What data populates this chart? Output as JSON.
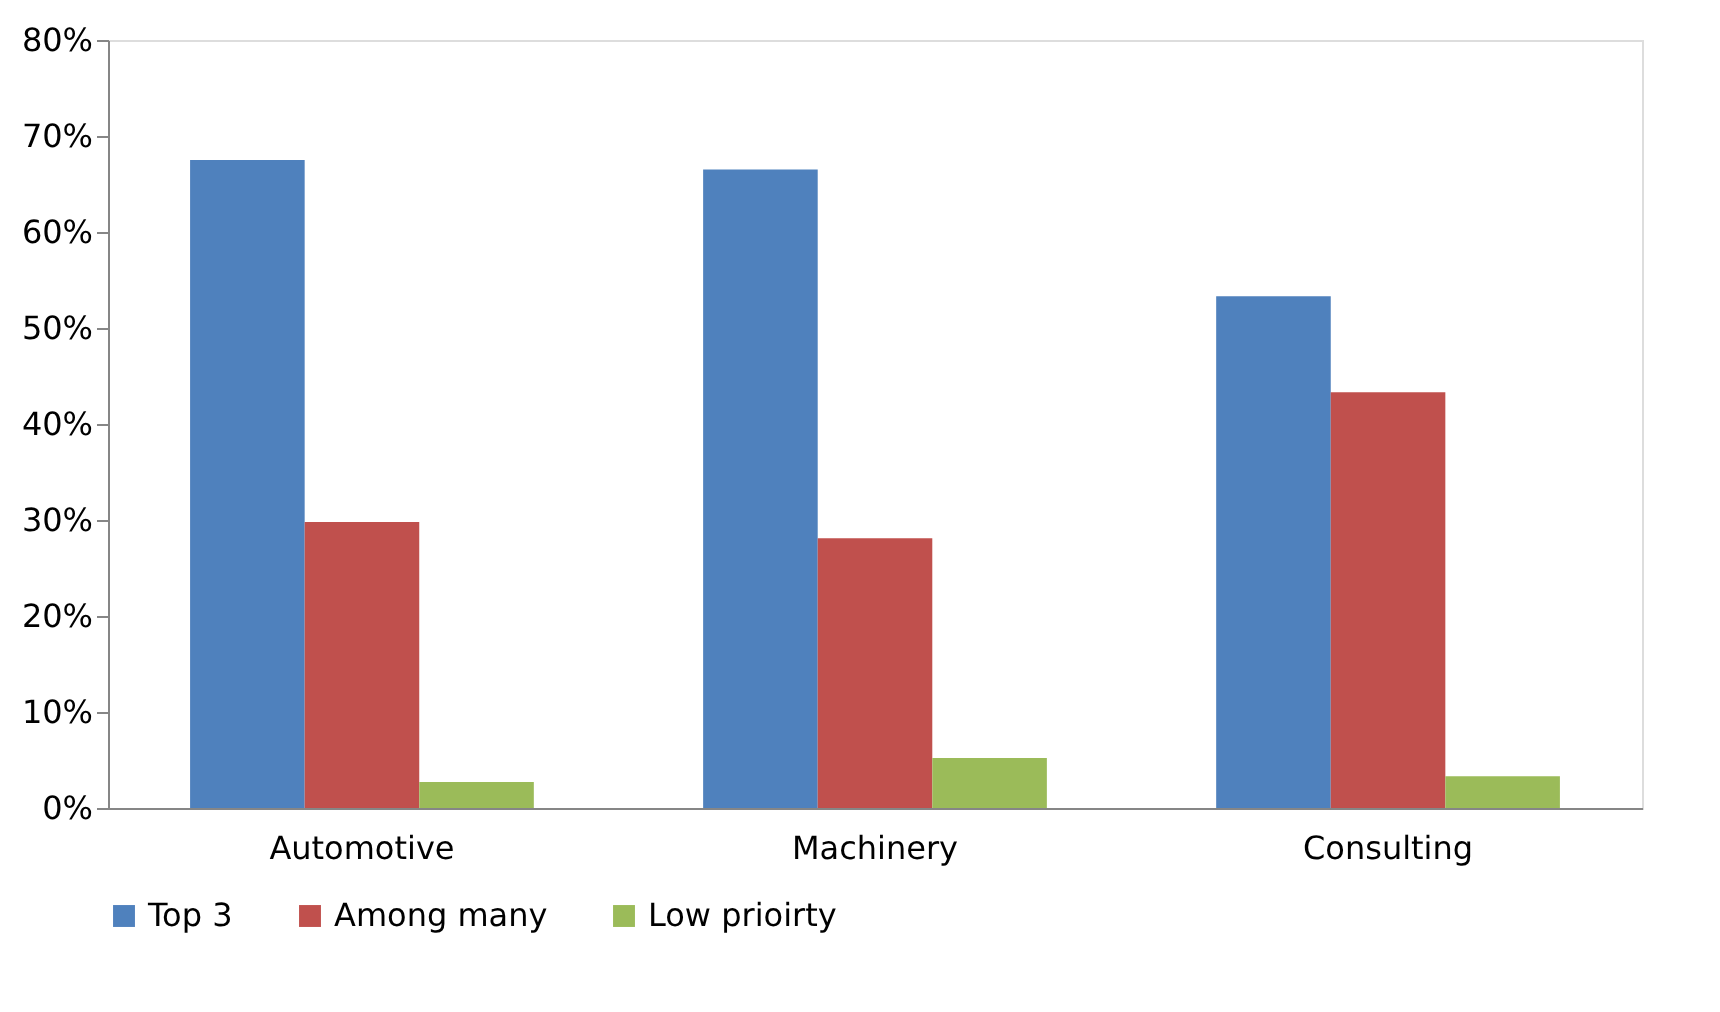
{
  "chart_data": {
    "type": "bar",
    "categories": [
      "Automotive",
      "Machinery",
      "Consulting"
    ],
    "series": [
      {
        "name": "Top 3",
        "color": "#4f81bd",
        "values": [
          67.5,
          66.5,
          53.3
        ]
      },
      {
        "name": "Among many",
        "color": "#c0504d",
        "values": [
          29.8,
          28.1,
          43.3
        ]
      },
      {
        "name": "Low prioirty",
        "color": "#9bbb59",
        "values": [
          2.7,
          5.2,
          3.3
        ]
      }
    ],
    "ylim": [
      0,
      80
    ],
    "yticks": [
      {
        "value": 0,
        "label": "0%"
      },
      {
        "value": 10,
        "label": "10%"
      },
      {
        "value": 20,
        "label": "20%"
      },
      {
        "value": 30,
        "label": "30%"
      },
      {
        "value": 40,
        "label": "40%"
      },
      {
        "value": 50,
        "label": "50%"
      },
      {
        "value": 60,
        "label": "60%"
      },
      {
        "value": 70,
        "label": "70%"
      },
      {
        "value": 80,
        "label": "80%"
      }
    ],
    "grid": false,
    "legend": "bottom"
  }
}
